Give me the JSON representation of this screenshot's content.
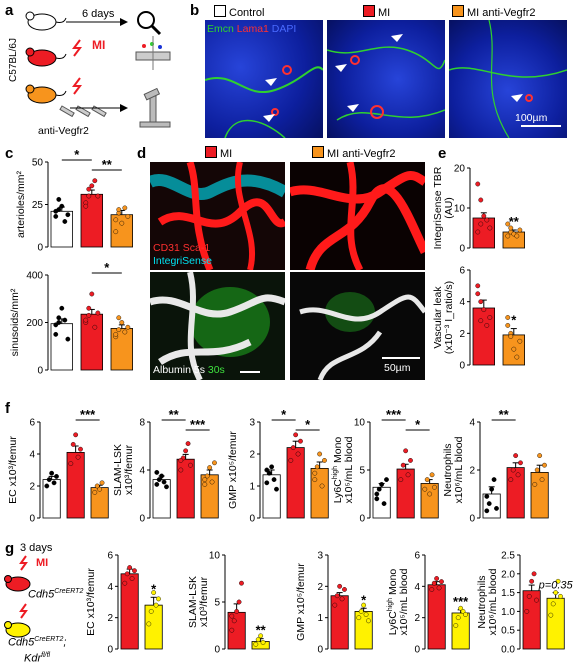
{
  "panels": {
    "a": "a",
    "b": "b",
    "c": "c",
    "d": "d",
    "e": "e",
    "f": "f",
    "g": "g"
  },
  "colors": {
    "control": "#ffffff",
    "mi": "#ed1c24",
    "anti": "#f7941d",
    "kdr": "#fff200",
    "emcn": "#2fd12f",
    "lama1": "#ff3030",
    "dapi": "#1a33d6"
  },
  "panel_a": {
    "duration": "6 days",
    "mi": "MI",
    "mouse_strain": "C57BL/6J",
    "treatment": "anti-Vegfr2",
    "icons": [
      "mouse-icon",
      "mouse-icon",
      "mouse-icon",
      "lightning-icon",
      "lightning-icon",
      "syringe-icon",
      "magnifier-icon",
      "flow-cytometer-icon",
      "microscope-icon"
    ]
  },
  "panel_b": {
    "legend": [
      "Control",
      "MI",
      "MI anti-Vegfr2"
    ],
    "stain_emcn": "Emcn",
    "stain_lama1": "Lama1",
    "stain_dapi": "DAPI",
    "scalebar": "100µm"
  },
  "panel_d": {
    "legend": [
      "MI",
      "MI anti-Vegfr2"
    ],
    "stain_cd31": "CD31 Sca-1",
    "stain_integrisense": "IntegriSense",
    "stain_albumin": "Albumin 5s",
    "stain_30s": "30s",
    "scalebar": "50µm"
  },
  "chart_data": [
    {
      "id": "c1",
      "type": "bar",
      "ylabel": "arterioles/mm²",
      "yticks": [
        0,
        25,
        50
      ],
      "ylim": [
        0,
        50
      ],
      "categories": [
        "Control",
        "MI",
        "MI anti-Vegfr2"
      ],
      "values": [
        21,
        31,
        19
      ],
      "errors": [
        2.5,
        2.5,
        2.5
      ],
      "points": [
        [
          18,
          22,
          24,
          15,
          19,
          21,
          28
        ],
        [
          26,
          30,
          36,
          39,
          30,
          24,
          34
        ],
        [
          16,
          20,
          14,
          23,
          18,
          9,
          22
        ]
      ],
      "sig": [
        {
          "a": 0,
          "b": 1,
          "label": "*"
        },
        {
          "a": 1,
          "b": 2,
          "label": "**"
        }
      ]
    },
    {
      "id": "c2",
      "type": "bar",
      "ylabel": "sinusoids/mm²",
      "yticks": [
        0,
        200,
        400
      ],
      "ylim": [
        0,
        400
      ],
      "categories": [
        "Control",
        "MI",
        "MI anti-Vegfr2"
      ],
      "values": [
        195,
        235,
        175
      ],
      "errors": [
        20,
        20,
        15
      ],
      "points": [
        [
          150,
          200,
          260,
          210,
          130,
          190,
          220
        ],
        [
          200,
          260,
          320,
          180,
          240,
          210,
          230
        ],
        [
          140,
          170,
          200,
          160,
          180,
          150,
          220
        ]
      ],
      "sig": [
        {
          "a": 1,
          "b": 2,
          "label": "*"
        }
      ]
    },
    {
      "id": "e1",
      "type": "bar",
      "ylabel": "IntegriSense TBR (AU)",
      "yticks": [
        0,
        10,
        20
      ],
      "ylim": [
        0,
        20
      ],
      "categories": [
        "MI",
        "MI anti-Vegfr2"
      ],
      "values": [
        7.5,
        4
      ],
      "errors": [
        1.3,
        0.5
      ],
      "points": [
        [
          16,
          12,
          8,
          7,
          5,
          4,
          6
        ],
        [
          6,
          4,
          3.5,
          3,
          4.5,
          3,
          5
        ]
      ],
      "sig": [
        {
          "a": 1,
          "b": 1,
          "label": "**"
        }
      ]
    },
    {
      "id": "e2",
      "type": "bar",
      "ylabel": "Vascular leak (x10⁻³ I_ratio/s)",
      "yticks": [
        0,
        2,
        4,
        6
      ],
      "ylim": [
        0,
        6
      ],
      "categories": [
        "MI",
        "MI anti-Vegfr2"
      ],
      "values": [
        3.6,
        1.9
      ],
      "errors": [
        0.5,
        0.4
      ],
      "points": [
        [
          5,
          4,
          3.5,
          2.5,
          3,
          4.5,
          2.8
        ],
        [
          3,
          2,
          1,
          0.5,
          1.5,
          2.5,
          1.8
        ]
      ],
      "sig": [
        {
          "a": 1,
          "b": 1,
          "label": "*"
        }
      ]
    },
    {
      "id": "f1",
      "type": "bar",
      "ylabel": "EC x10³/femur",
      "yticks": [
        0,
        2,
        4,
        6
      ],
      "ylim": [
        0,
        6
      ],
      "categories": [
        "Control",
        "MI",
        "MI anti-Vegfr2"
      ],
      "values": [
        2.4,
        4.1,
        1.9
      ],
      "errors": [
        0.2,
        0.4,
        0.15
      ],
      "points": [
        [
          2.0,
          2.4,
          2.8,
          2.2,
          2.6
        ],
        [
          3.4,
          4.6,
          5.2,
          3.8,
          4.3
        ],
        [
          1.6,
          2.0,
          1.8,
          2.2
        ]
      ],
      "sig": [
        {
          "a": 1,
          "b": 2,
          "label": "***"
        }
      ]
    },
    {
      "id": "f2",
      "type": "bar",
      "ylabel": "SLAM-LSK x10³/femur",
      "yticks": [
        0,
        4,
        8
      ],
      "ylim": [
        0,
        8
      ],
      "categories": [
        "Control",
        "MI",
        "MI anti-Vegfr2"
      ],
      "values": [
        3.2,
        4.9,
        3.6
      ],
      "errors": [
        0.3,
        0.4,
        0.4
      ],
      "points": [
        [
          2.8,
          3.2,
          3.5,
          3.0,
          2.6,
          3.8
        ],
        [
          4,
          5,
          5.6,
          6.2,
          4.4,
          4.8
        ],
        [
          2.8,
          3.5,
          4.2,
          3.0,
          4.6,
          3.2
        ]
      ],
      "sig": [
        {
          "a": 0,
          "b": 1,
          "label": "**"
        },
        {
          "a": 1,
          "b": 2,
          "label": "***"
        }
      ]
    },
    {
      "id": "f3",
      "type": "bar",
      "ylabel": "GMP x10⁵/femur",
      "yticks": [
        0,
        1,
        2,
        3
      ],
      "ylim": [
        0,
        3
      ],
      "categories": [
        "Control",
        "MI",
        "MI anti-Vegfr2"
      ],
      "values": [
        1.35,
        2.2,
        1.55
      ],
      "errors": [
        0.15,
        0.2,
        0.2
      ],
      "points": [
        [
          1.1,
          1.4,
          1.6,
          1.2,
          0.9,
          1.5
        ],
        [
          1.8,
          2.2,
          2.6,
          2.0,
          2.4
        ],
        [
          1.2,
          1.6,
          2.0,
          1.0,
          1.8,
          1.4
        ]
      ],
      "sig": [
        {
          "a": 0,
          "b": 1,
          "label": "*"
        },
        {
          "a": 1,
          "b": 2,
          "label": "*"
        }
      ]
    },
    {
      "id": "f4",
      "type": "bar",
      "ylabel": "Ly6Chigh Mono x10⁵/mL blood",
      "yticks": [
        0,
        5,
        10
      ],
      "ylim": [
        0,
        10
      ],
      "categories": [
        "Control",
        "MI",
        "MI anti-Vegfr2"
      ],
      "values": [
        3.2,
        5.1,
        3.6
      ],
      "errors": [
        0.4,
        0.5,
        0.4
      ],
      "points": [
        [
          2.0,
          3.0,
          3.5,
          1.5,
          4.0,
          2.5
        ],
        [
          4.0,
          5.5,
          7.0,
          4.5,
          6.0
        ],
        [
          3.0,
          4.0,
          2.5,
          4.5,
          3.2
        ]
      ],
      "sig": [
        {
          "a": 0,
          "b": 1,
          "label": "***"
        },
        {
          "a": 1,
          "b": 2,
          "label": "*"
        }
      ]
    },
    {
      "id": "f5",
      "type": "bar",
      "ylabel": "Neutrophils x10⁶/mL blood",
      "yticks": [
        0,
        2,
        4
      ],
      "ylim": [
        0,
        4
      ],
      "categories": [
        "Control",
        "MI",
        "MI anti-Vegfr2"
      ],
      "values": [
        1.0,
        2.1,
        1.9
      ],
      "errors": [
        0.3,
        0.2,
        0.3
      ],
      "points": [
        [
          0.3,
          0.6,
          1.2,
          1.6,
          0.4,
          0.9
        ],
        [
          1.6,
          2.0,
          2.6,
          1.8,
          2.3
        ],
        [
          1.4,
          2.0,
          2.6,
          1.6,
          2.2
        ]
      ],
      "sig": [
        {
          "a": 0,
          "b": 1,
          "label": "**"
        }
      ]
    },
    {
      "id": "g1",
      "type": "bar",
      "ylabel": "EC x10³/femur",
      "yticks": [
        0,
        2,
        4,
        6
      ],
      "ylim": [
        0,
        6
      ],
      "categories": [
        "Cdh5CreERT2",
        "Cdh5CreERT2;Kdrfl/fl"
      ],
      "values": [
        4.8,
        2.8
      ],
      "errors": [
        0.3,
        0.5
      ],
      "points": [
        [
          4.2,
          4.8,
          5.2,
          4.5,
          5.0
        ],
        [
          1.6,
          2.4,
          3.6,
          2.8,
          3.2
        ]
      ],
      "sig": [
        {
          "a": 1,
          "b": 1,
          "label": "*"
        }
      ]
    },
    {
      "id": "g2",
      "type": "bar",
      "ylabel": "SLAM-LSK x10³/femur",
      "yticks": [
        0,
        5,
        10
      ],
      "ylim": [
        0,
        10
      ],
      "categories": [
        "Cdh5CreERT2",
        "Cdh5CreERT2;Kdrfl/fl"
      ],
      "values": [
        3.9,
        0.8
      ],
      "errors": [
        0.9,
        0.3
      ],
      "points": [
        [
          2,
          3,
          4,
          5,
          7,
          3.5
        ],
        [
          0.5,
          1.0,
          1.4,
          0.7
        ]
      ],
      "sig": [
        {
          "a": 1,
          "b": 1,
          "label": "**"
        }
      ]
    },
    {
      "id": "g3",
      "type": "bar",
      "ylabel": "GMP x10⁵/femur",
      "yticks": [
        0,
        1,
        2,
        3
      ],
      "ylim": [
        0,
        3
      ],
      "categories": [
        "Cdh5CreERT2",
        "Cdh5CreERT2;Kdrfl/fl"
      ],
      "values": [
        1.7,
        1.2
      ],
      "errors": [
        0.1,
        0.1
      ],
      "points": [
        [
          1.4,
          1.7,
          2.0,
          1.6,
          1.9
        ],
        [
          1.0,
          1.2,
          1.4,
          1.1,
          0.9
        ]
      ],
      "sig": [
        {
          "a": 1,
          "b": 1,
          "label": "*"
        }
      ]
    },
    {
      "id": "g4",
      "type": "bar",
      "ylabel": "Ly6Chigh Mono x10⁵/mL blood",
      "yticks": [
        0,
        2,
        4,
        6
      ],
      "ylim": [
        0,
        6
      ],
      "categories": [
        "Cdh5CreERT2",
        "Cdh5CreERT2;Kdrfl/fl"
      ],
      "values": [
        4.1,
        2.3
      ],
      "errors": [
        0.2,
        0.2
      ],
      "points": [
        [
          3.8,
          4.2,
          4.5,
          3.9,
          4.3
        ],
        [
          1.5,
          2.0,
          2.6,
          2.4,
          2.2
        ]
      ],
      "sig": [
        {
          "a": 1,
          "b": 1,
          "label": "***"
        }
      ]
    },
    {
      "id": "g5",
      "type": "bar",
      "ylabel": "Neutrophils x10⁶/mL blood",
      "yticks": [
        0.0,
        0.5,
        1.0,
        1.5,
        2.0,
        2.5
      ],
      "ylim": [
        0,
        2.5
      ],
      "categories": [
        "Cdh5CreERT2",
        "Cdh5CreERT2;Kdrfl/fl"
      ],
      "values": [
        1.55,
        1.35
      ],
      "errors": [
        0.15,
        0.15
      ],
      "points": [
        [
          1.0,
          1.4,
          1.8,
          2.0,
          1.3
        ],
        [
          0.9,
          1.2,
          1.5,
          1.8,
          1.4
        ]
      ],
      "sig": [
        {
          "a": 1,
          "b": 1,
          "label": "p=0.35"
        }
      ]
    }
  ],
  "panel_g": {
    "duration": "3 days",
    "mi": "MI",
    "genotype1": "Cdh5",
    "genotype1_sup": "CreERT2",
    "genotype2a": "Cdh5",
    "genotype2a_sup": "CreERT2",
    "genotype2b": "Kdr",
    "genotype2b_sup": "fl/fl"
  }
}
